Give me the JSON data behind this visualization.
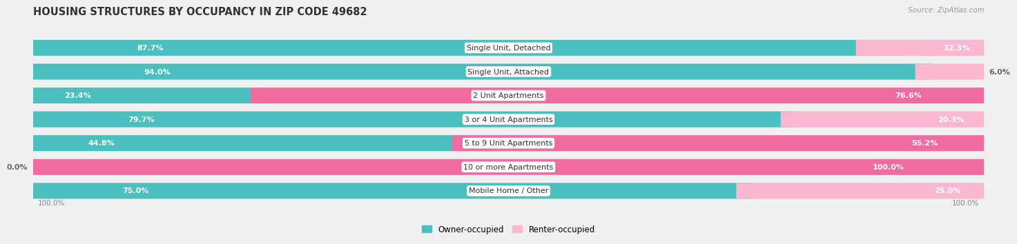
{
  "title": "HOUSING STRUCTURES BY OCCUPANCY IN ZIP CODE 49682",
  "source": "Source: ZipAtlas.com",
  "categories": [
    "Single Unit, Detached",
    "Single Unit, Attached",
    "2 Unit Apartments",
    "3 or 4 Unit Apartments",
    "5 to 9 Unit Apartments",
    "10 or more Apartments",
    "Mobile Home / Other"
  ],
  "owner_pct": [
    87.7,
    94.0,
    23.4,
    79.7,
    44.8,
    0.0,
    75.0
  ],
  "renter_pct": [
    12.3,
    6.0,
    76.6,
    20.3,
    55.2,
    100.0,
    25.0
  ],
  "owner_color": "#4BBFBF",
  "renter_color_large": "#F06BA0",
  "renter_color_small": "#F9B8D0",
  "background_color": "#f0f0f0",
  "bar_bg_color": "#e0e0e0",
  "title_fontsize": 10.5,
  "label_fontsize": 8,
  "cat_fontsize": 8,
  "legend_fontsize": 8.5,
  "source_fontsize": 7.5,
  "inside_label_threshold_owner": 0.12,
  "inside_label_threshold_renter": 0.12
}
